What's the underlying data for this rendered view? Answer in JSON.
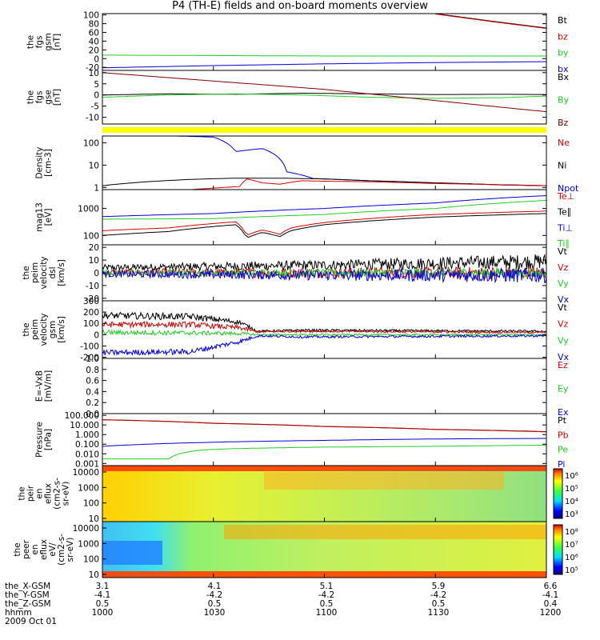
{
  "title": "P4 (TH-E) fields and on-board moments overview",
  "colors": {
    "black": "#000000",
    "red": "#d40000",
    "green": "#22cc22",
    "blue": "#0000dd",
    "yellow": "#ffff00",
    "dark_red": "#800000"
  },
  "chart_data": [
    {
      "type": "line",
      "ylabel": [
        "the",
        "fgs",
        "gsm",
        "[nT]"
      ],
      "ytick_labels": [
        "100",
        "80",
        "60",
        "40",
        "20",
        "0",
        "-20"
      ],
      "yticks": [
        100,
        80,
        60,
        40,
        20,
        0,
        -20
      ],
      "ylim": [
        -27,
        103
      ],
      "legend": [
        {
          "label": "Bt",
          "color": "#000000"
        },
        {
          "label": "bz",
          "color": "#d40000"
        },
        {
          "label": "by",
          "color": "#22cc22"
        },
        {
          "label": "bx",
          "color": "#0000dd"
        }
      ],
      "series": [
        {
          "name": "Bt",
          "color": "#000000",
          "x": [
            1.5,
            1.75,
            2.0
          ],
          "y": [
            103,
            86,
            70
          ]
        },
        {
          "name": "bz",
          "color": "#d40000",
          "x": [
            1.5,
            1.75,
            2.0
          ],
          "y": [
            102,
            85,
            69
          ]
        },
        {
          "name": "by",
          "color": "#22cc22",
          "x": [
            0,
            0.5,
            1.0,
            1.5,
            2.0
          ],
          "y": [
            8,
            7,
            6,
            6,
            6
          ]
        },
        {
          "name": "bx",
          "color": "#0000dd",
          "x": [
            0,
            0.5,
            1.0,
            1.5,
            2.0
          ],
          "y": [
            -21,
            -16,
            -12,
            -9,
            -7
          ]
        }
      ]
    },
    {
      "type": "line",
      "ylabel": [
        "the",
        "fgs",
        "gse",
        "[nT]"
      ],
      "ytick_labels": [
        "10",
        "5",
        "0",
        "-5",
        "-10"
      ],
      "yticks": [
        10,
        5,
        0,
        -5,
        -10
      ],
      "ylim": [
        -13,
        11
      ],
      "legend": [
        {
          "label": "Bx",
          "color": "#000000"
        },
        {
          "label": "By",
          "color": "#22cc22"
        },
        {
          "label": "Bz",
          "color": "#800000"
        }
      ],
      "series": [
        {
          "name": "Bx",
          "color": "#000000",
          "x": [
            0,
            0.3,
            0.6,
            0.9,
            1.2,
            1.5,
            1.8,
            2.0
          ],
          "y": [
            0,
            0.5,
            0.3,
            0.8,
            0.5,
            0.2,
            0.3,
            0.2
          ]
        },
        {
          "name": "By",
          "color": "#22cc22",
          "x": [
            0,
            0.3,
            0.6,
            0.9,
            1.2,
            1.5,
            1.8,
            2.0
          ],
          "y": [
            -1,
            0,
            0.5,
            0,
            -1,
            -1.5,
            -1.2,
            -0.5
          ]
        },
        {
          "name": "Bz",
          "color": "#800000",
          "x": [
            0,
            0.2,
            0.4,
            0.6,
            0.8,
            1.0,
            1.2,
            1.4,
            1.6,
            1.8,
            2.0
          ],
          "y": [
            10,
            8.5,
            7,
            5.5,
            4,
            2.5,
            0.5,
            -1.5,
            -3.5,
            -5.5,
            -7.5
          ]
        }
      ]
    },
    {
      "type": "line",
      "log": true,
      "ylabel": [
        "Density",
        "[cm-3]"
      ],
      "ytick_labels": [
        "100",
        "10",
        "1"
      ],
      "yticks": [
        100,
        10,
        1
      ],
      "ylim": [
        0.8,
        200
      ],
      "legend": [
        {
          "label": "Ne",
          "color": "#d40000"
        },
        {
          "label": "Ni",
          "color": "#000000"
        },
        {
          "label": "Npot",
          "color": "#0000dd"
        }
      ],
      "series": [
        {
          "name": "Npot",
          "color": "#0000dd",
          "x": [
            0.33,
            0.5,
            0.6,
            0.72,
            0.83,
            0.95,
            1.2,
            1.5,
            1.8,
            2.0
          ],
          "y": [
            200,
            180,
            40,
            55,
            5,
            2.5,
            2,
            1.6,
            1.3,
            1.2
          ]
        },
        {
          "name": "Ni",
          "color": "#000000",
          "x": [
            0,
            0.2,
            0.4,
            0.6,
            0.8,
            1.0,
            1.2,
            1.5,
            1.8,
            2.0
          ],
          "y": [
            1.2,
            1.8,
            2.3,
            2.6,
            2.6,
            2.4,
            2.0,
            1.6,
            1.3,
            1.2
          ]
        },
        {
          "name": "Ne",
          "color": "#d40000",
          "x": [
            0.4,
            0.55,
            0.62,
            0.65,
            0.72,
            0.8,
            0.9,
            1.0,
            1.2,
            1.5,
            2.0
          ],
          "y": [
            0.8,
            1.0,
            1.1,
            2.4,
            1.6,
            1.4,
            2.0,
            1.9,
            1.8,
            1.5,
            1.2
          ]
        }
      ]
    },
    {
      "type": "line",
      "log": true,
      "ylabel": [
        "mag13",
        "[eV]"
      ],
      "ytick_labels": [
        "1000",
        "100"
      ],
      "yticks": [
        1000,
        100
      ],
      "ylim": [
        45,
        5000
      ],
      "legend": [
        {
          "label": "Te⊥",
          "color": "#d40000"
        },
        {
          "label": "Te∥",
          "color": "#000000"
        },
        {
          "label": "Ti⊥",
          "color": "#0000dd"
        },
        {
          "label": "Ti∥",
          "color": "#22cc22"
        }
      ],
      "series": [
        {
          "name": "Ti⊥",
          "color": "#0000dd",
          "x": [
            0,
            0.5,
            1.0,
            1.5,
            2.0
          ],
          "y": [
            500,
            650,
            1000,
            1600,
            3000
          ]
        },
        {
          "name": "Ti∥",
          "color": "#22cc22",
          "x": [
            0,
            0.5,
            1.0,
            1.5,
            2.0
          ],
          "y": [
            400,
            420,
            600,
            1000,
            2000
          ]
        },
        {
          "name": "Te⊥",
          "color": "#d40000",
          "x": [
            0,
            0.3,
            0.6,
            0.65,
            0.72,
            0.8,
            0.85,
            1.0,
            1.5,
            2.0
          ],
          "y": [
            150,
            190,
            320,
            100,
            160,
            110,
            190,
            300,
            600,
            800
          ]
        },
        {
          "name": "Te∥",
          "color": "#000000",
          "x": [
            0,
            0.3,
            0.6,
            0.65,
            0.72,
            0.8,
            0.85,
            1.0,
            1.5,
            2.0
          ],
          "y": [
            100,
            140,
            250,
            80,
            130,
            90,
            150,
            250,
            480,
            650
          ]
        }
      ]
    },
    {
      "type": "line",
      "noisy": true,
      "ylabel": [
        "the",
        "peim",
        "velocity",
        "dsl",
        "[km/s]"
      ],
      "ytick_labels": [
        "20",
        "10",
        "0",
        "-10",
        "-20"
      ],
      "yticks": [
        20,
        10,
        0,
        -10,
        -20
      ],
      "ylim": [
        -22,
        22
      ],
      "legend": [
        {
          "label": "Vt",
          "color": "#000000"
        },
        {
          "label": "Vz",
          "color": "#d40000"
        },
        {
          "label": "Vy",
          "color": "#22cc22"
        },
        {
          "label": "Vx",
          "color": "#0000dd"
        }
      ],
      "series": [
        {
          "name": "Vt",
          "color": "#000000",
          "x": [
            0,
            1.0,
            2.0
          ],
          "y": [
            4,
            6,
            9
          ],
          "spread": [
            2.5,
            4,
            6
          ]
        },
        {
          "name": "Vz",
          "color": "#d40000",
          "x": [
            0,
            1.0,
            2.0
          ],
          "y": [
            0,
            0,
            0
          ],
          "spread": [
            3,
            4,
            5
          ]
        },
        {
          "name": "Vy",
          "color": "#22cc22",
          "x": [
            0,
            1.0,
            2.0
          ],
          "y": [
            0,
            0,
            0
          ],
          "spread": [
            2,
            3,
            4
          ]
        },
        {
          "name": "Vx",
          "color": "#0000dd",
          "x": [
            0,
            1.0,
            2.0
          ],
          "y": [
            -1,
            -2,
            -2
          ],
          "spread": [
            2.5,
            4,
            6
          ]
        }
      ]
    },
    {
      "type": "line",
      "noisy": true,
      "ylabel": [
        "the",
        "peim",
        "velocity",
        "gsm",
        "[km/s]"
      ],
      "ytick_labels": [
        "300",
        "200",
        "100",
        "0",
        "-100",
        "-200"
      ],
      "yticks": [
        300,
        200,
        100,
        0,
        -100,
        -200
      ],
      "ylim": [
        -210,
        300
      ],
      "legend": [
        {
          "label": "Vt",
          "color": "#000000"
        },
        {
          "label": "Vz",
          "color": "#d40000"
        },
        {
          "label": "Vy",
          "color": "#22cc22"
        },
        {
          "label": "Vx",
          "color": "#0000dd"
        }
      ],
      "series": [
        {
          "name": "Vt",
          "color": "#000000",
          "x": [
            0,
            0.4,
            0.62,
            0.7,
            0.9,
            2.0
          ],
          "y": [
            170,
            160,
            110,
            30,
            40,
            30
          ],
          "spread": [
            30,
            30,
            20,
            10,
            10,
            10
          ]
        },
        {
          "name": "Vz",
          "color": "#d40000",
          "x": [
            0,
            0.4,
            0.62,
            0.7,
            0.9,
            2.0
          ],
          "y": [
            90,
            90,
            60,
            25,
            30,
            20
          ],
          "spread": [
            25,
            25,
            20,
            8,
            8,
            8
          ]
        },
        {
          "name": "Vy",
          "color": "#22cc22",
          "x": [
            0,
            0.4,
            0.62,
            0.7,
            0.9,
            2.0
          ],
          "y": [
            20,
            15,
            10,
            0,
            0,
            0
          ],
          "spread": [
            20,
            20,
            15,
            8,
            8,
            8
          ]
        },
        {
          "name": "Vx",
          "color": "#0000dd",
          "x": [
            0,
            0.4,
            0.62,
            0.7,
            0.9,
            2.0
          ],
          "y": [
            -160,
            -150,
            -60,
            -10,
            -20,
            -10
          ],
          "spread": [
            25,
            25,
            20,
            10,
            10,
            10
          ]
        }
      ]
    },
    {
      "type": "line",
      "ylabel": [
        "E=-VxB",
        "[mV/m]"
      ],
      "ytick_labels": [
        "1.0",
        "0.8",
        "0.6",
        "0.4",
        "0.2",
        "0.0"
      ],
      "yticks": [
        1.0,
        0.8,
        0.6,
        0.4,
        0.2,
        0.0
      ],
      "ylim": [
        0,
        1.0
      ],
      "legend": [
        {
          "label": "Ez",
          "color": "#d40000"
        },
        {
          "label": "Ey",
          "color": "#22cc22"
        },
        {
          "label": "Ex",
          "color": "#0000dd"
        }
      ],
      "series": []
    },
    {
      "type": "line",
      "log": true,
      "ylabel": [
        "Pressure",
        "[nPa]"
      ],
      "ytick_labels": [
        "100.000",
        "10.000",
        "1.000",
        "0.100",
        "0.010",
        "0.001"
      ],
      "yticks": [
        100,
        10,
        1,
        0.1,
        0.01,
        0.001
      ],
      "ylim": [
        0.0006,
        150
      ],
      "legend": [
        {
          "label": "Pt",
          "color": "#000000"
        },
        {
          "label": "Pb",
          "color": "#d40000"
        },
        {
          "label": "Pe",
          "color": "#22cc22"
        },
        {
          "label": "Pi",
          "color": "#0000dd"
        }
      ],
      "series": [
        {
          "name": "Pt",
          "color": "#000000",
          "x": [
            0,
            0.5,
            1.0,
            1.5,
            2.0
          ],
          "y": [
            35,
            15,
            7,
            3.5,
            2
          ]
        },
        {
          "name": "Pb",
          "color": "#d40000",
          "x": [
            0,
            0.5,
            1.0,
            1.5,
            2.0
          ],
          "y": [
            34,
            14.5,
            6.8,
            3.4,
            1.9
          ]
        },
        {
          "name": "Pi",
          "color": "#0000dd",
          "x": [
            0,
            0.3,
            0.6,
            1.0,
            1.5,
            2.0
          ],
          "y": [
            0.06,
            0.12,
            0.18,
            0.25,
            0.35,
            0.4
          ]
        },
        {
          "name": "Pe",
          "color": "#22cc22",
          "x": [
            0,
            0.3,
            0.45,
            0.6,
            1.0,
            1.5,
            2.0
          ],
          "y": [
            0.003,
            0.003,
            0.025,
            0.035,
            0.05,
            0.06,
            0.08
          ]
        }
      ]
    },
    {
      "type": "heatmap",
      "ylabel": [
        "the",
        "peir",
        "en",
        "eflux",
        "(cm2-s-",
        "sr-eV)"
      ],
      "ytick_labels": [
        "10000",
        "1000",
        "100",
        "10"
      ],
      "colorbar_labels": [
        "10⁶",
        "10⁵",
        "10⁴",
        "10³"
      ]
    },
    {
      "type": "heatmap",
      "ylabel": [
        "the",
        "peer",
        "en",
        "eflux",
        "eV/",
        "(cm2-s-",
        "sr-eV)"
      ],
      "ytick_labels": [
        "10000",
        "1000",
        "100",
        "10"
      ],
      "colorbar_labels": [
        "10⁸",
        "10⁷",
        "10⁶",
        "10⁵"
      ]
    }
  ],
  "footer": {
    "labels": [
      "the_X-GSM",
      "the_Y-GSM",
      "the_Z-GSM",
      "hhmm",
      "2009 Oct 01"
    ],
    "columns": [
      {
        "x": "3.1",
        "y": "-4.1",
        "z": "0.5",
        "t": "1000"
      },
      {
        "x": "4.1",
        "y": "-4.2",
        "z": "0.5",
        "t": "1030"
      },
      {
        "x": "5.1",
        "y": "-4.2",
        "z": "0.5",
        "t": "1100"
      },
      {
        "x": "5.9",
        "y": "-4.2",
        "z": "0.5",
        "t": "1130"
      },
      {
        "x": "6.6",
        "y": "-4.1",
        "z": "0.4",
        "t": "1200"
      }
    ]
  }
}
